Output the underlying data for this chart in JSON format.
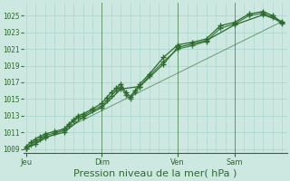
{
  "bg_color": "#cce8e0",
  "grid_color": "#a8d4cc",
  "line_color": "#2d6a2d",
  "xlabel": "Pression niveau de la mer( hPa )",
  "xlabel_fontsize": 8,
  "yticks": [
    1009,
    1011,
    1013,
    1015,
    1017,
    1019,
    1021,
    1023,
    1025
  ],
  "ylim": [
    1008.5,
    1026.5
  ],
  "xtick_labels": [
    "Jeu",
    "Dim",
    "Ven",
    "Sam"
  ],
  "xtick_positions": [
    0,
    32,
    64,
    88
  ],
  "xlim": [
    -1,
    110
  ],
  "vline_positions": [
    32,
    64,
    88
  ],
  "series1_x": [
    0,
    2,
    4,
    6,
    8,
    12,
    16,
    18,
    20,
    22,
    24,
    28,
    32,
    34,
    36,
    38,
    40,
    42,
    44,
    46,
    48,
    52,
    58,
    64,
    70,
    76,
    82,
    88,
    94,
    100,
    104,
    108
  ],
  "series1_y": [
    1009.3,
    1009.8,
    1010.2,
    1010.5,
    1010.8,
    1011.1,
    1011.4,
    1012.0,
    1012.5,
    1013.0,
    1013.2,
    1013.8,
    1014.5,
    1015.2,
    1015.8,
    1016.3,
    1016.8,
    1015.8,
    1015.3,
    1016.0,
    1016.8,
    1018.0,
    1020.0,
    1021.5,
    1021.8,
    1022.2,
    1023.8,
    1024.2,
    1025.2,
    1025.5,
    1025.0,
    1024.2
  ],
  "series2_x": [
    0,
    2,
    4,
    6,
    8,
    12,
    16,
    18,
    20,
    22,
    24,
    28,
    32,
    34,
    36,
    38,
    40,
    42,
    44,
    46,
    48,
    52,
    58,
    64,
    70,
    76,
    82,
    88,
    94,
    100,
    104,
    108
  ],
  "series2_y": [
    1009.1,
    1009.5,
    1009.9,
    1010.2,
    1010.6,
    1010.9,
    1011.2,
    1011.8,
    1012.3,
    1012.8,
    1013.0,
    1013.6,
    1014.2,
    1014.8,
    1015.4,
    1016.0,
    1016.4,
    1015.5,
    1015.0,
    1015.8,
    1016.5,
    1017.8,
    1019.5,
    1021.0,
    1021.4,
    1021.9,
    1023.5,
    1024.0,
    1025.0,
    1025.3,
    1024.8,
    1024.0
  ],
  "series3_x": [
    0,
    4,
    8,
    16,
    24,
    32,
    40,
    48,
    58,
    64,
    76,
    88,
    100,
    108
  ],
  "series3_y": [
    1009.1,
    1009.6,
    1010.4,
    1011.0,
    1012.8,
    1014.0,
    1016.2,
    1016.5,
    1019.2,
    1021.2,
    1022.0,
    1023.9,
    1025.1,
    1024.3
  ],
  "series4_x": [
    0,
    108
  ],
  "series4_y": [
    1009.1,
    1024.3
  ],
  "marker": "+",
  "markersize": 4,
  "linewidth": 0.9
}
